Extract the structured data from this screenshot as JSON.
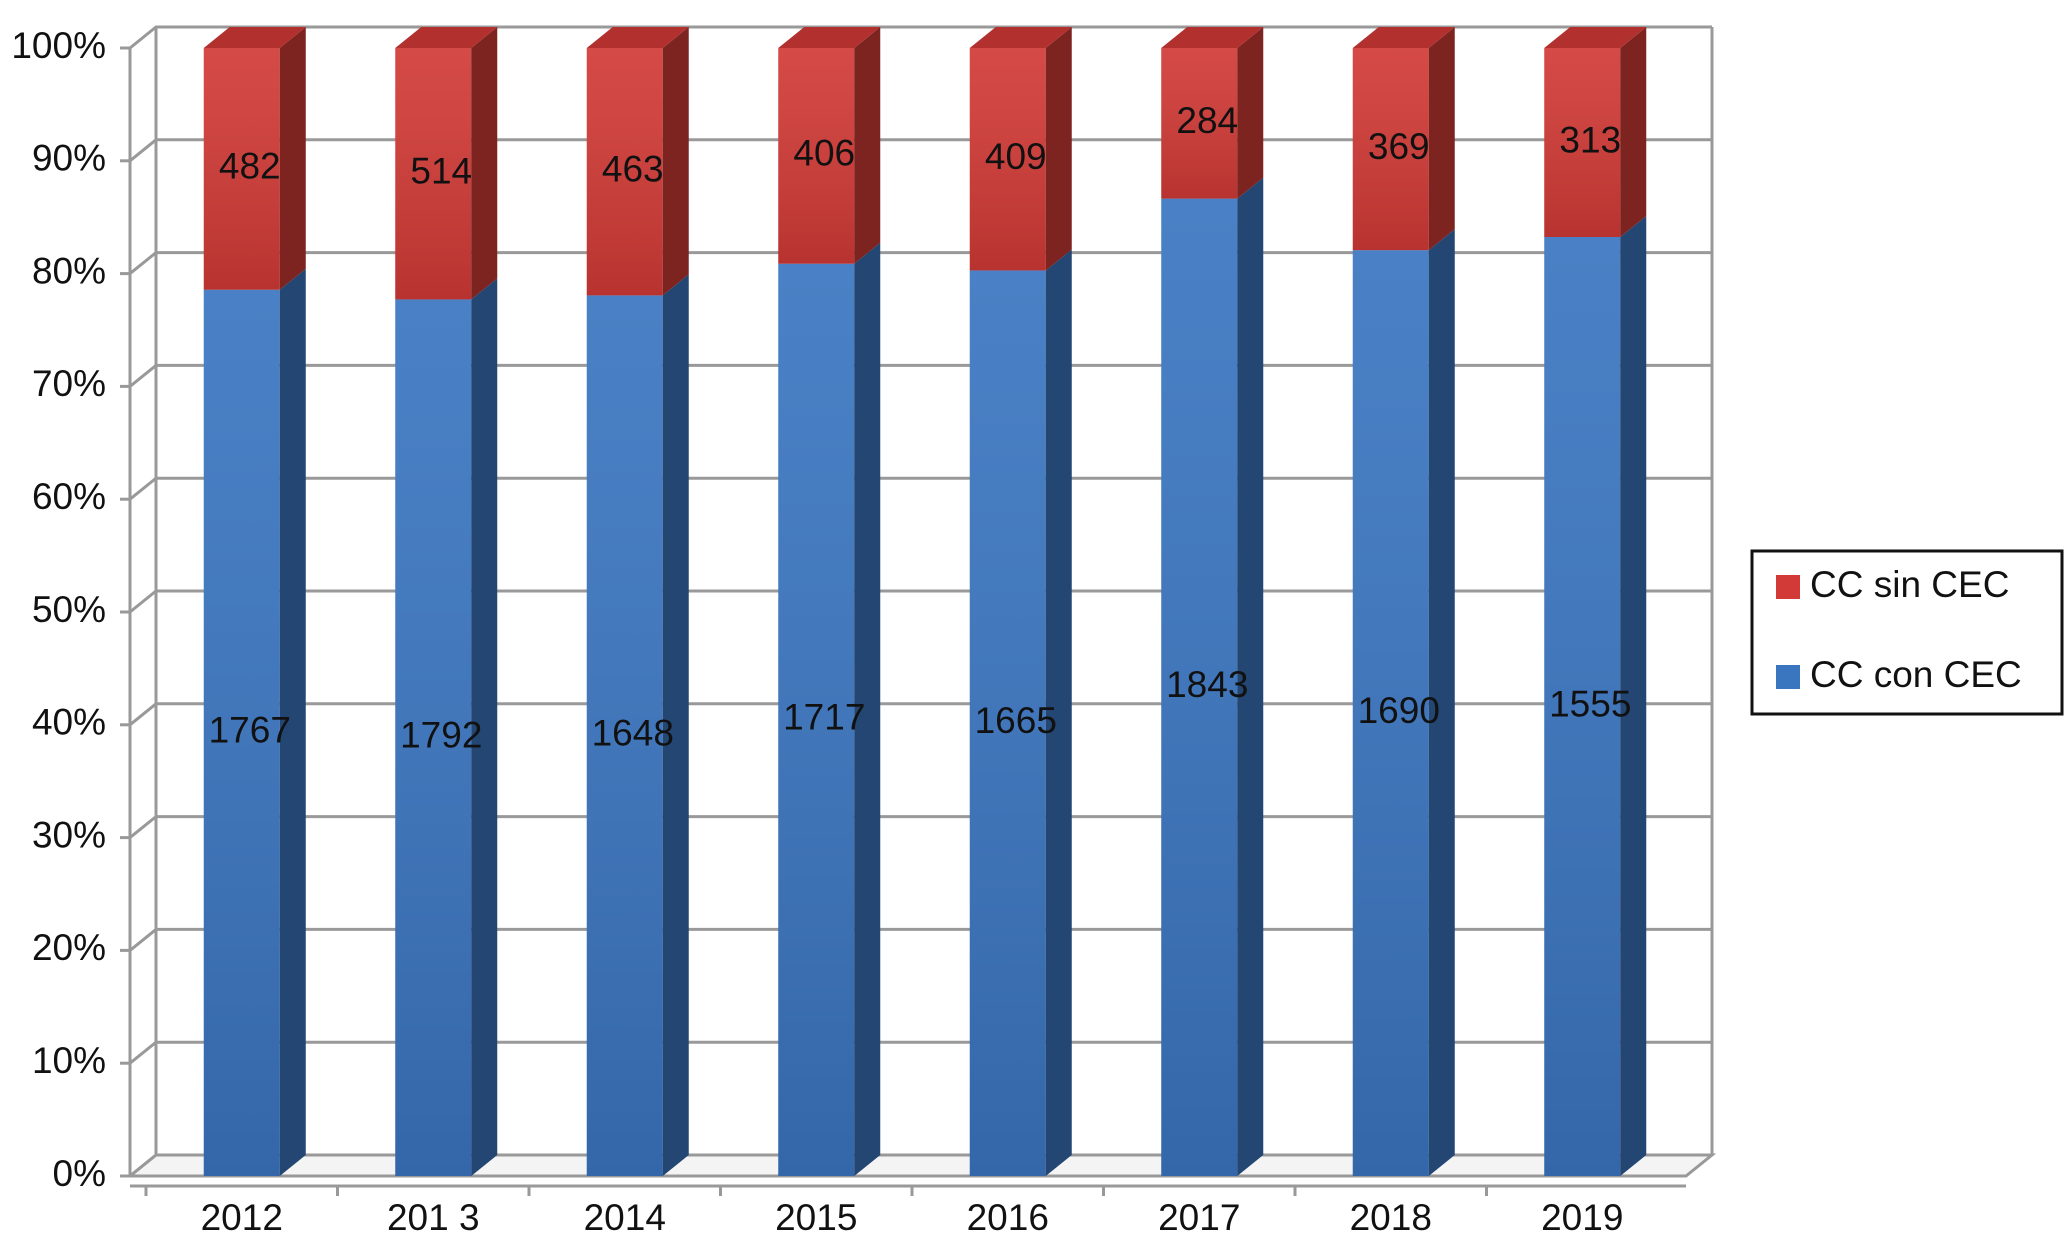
{
  "chart_data": {
    "type": "bar",
    "stacking": "percent",
    "categories": [
      "2012",
      "201 3",
      "2014",
      "2015",
      "2016",
      "2017",
      "2018",
      "2019"
    ],
    "series": [
      {
        "name": "CC con CEC",
        "color": "#3a75c0",
        "values": [
          1767,
          1792,
          1648,
          1717,
          1665,
          1843,
          1690,
          1555
        ]
      },
      {
        "name": "CC sin CEC",
        "color": "#d13a36",
        "values": [
          482,
          514,
          463,
          406,
          409,
          284,
          369,
          313
        ]
      }
    ],
    "ylim": [
      0,
      100
    ],
    "yticks": [
      {
        "value": 0,
        "label": "0%"
      },
      {
        "value": 10,
        "label": "10%"
      },
      {
        "value": 20,
        "label": "20%"
      },
      {
        "value": 30,
        "label": "30%"
      },
      {
        "value": 40,
        "label": "40%"
      },
      {
        "value": 50,
        "label": "50%"
      },
      {
        "value": 60,
        "label": "60%"
      },
      {
        "value": 70,
        "label": "70%"
      },
      {
        "value": 80,
        "label": "80%"
      },
      {
        "value": 90,
        "label": "90%"
      },
      {
        "value": 100,
        "label": "100%"
      }
    ],
    "grid": true,
    "legend": "right"
  }
}
